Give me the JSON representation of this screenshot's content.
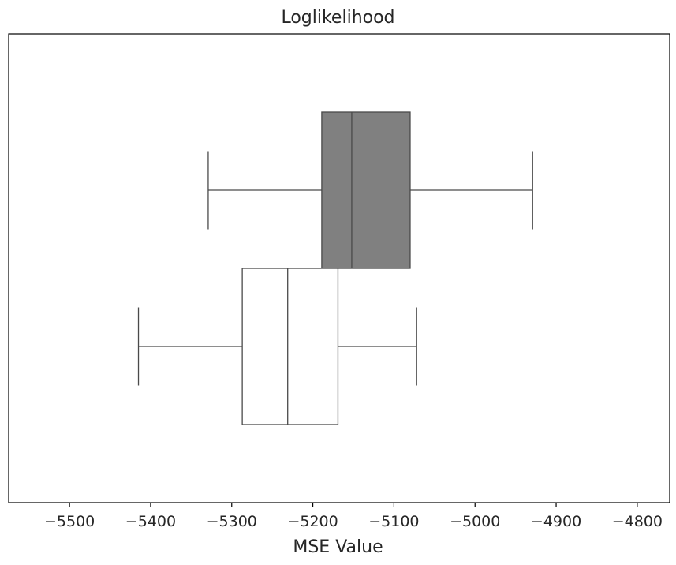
{
  "chart_data": {
    "type": "boxplot",
    "orientation": "horizontal",
    "title": "Loglikelihood",
    "xlabel": "MSE Value",
    "ylabel": "",
    "xlim": [
      -5575,
      -4760
    ],
    "xticks": [
      -5500,
      -5400,
      -5300,
      -5200,
      -5100,
      -5000,
      -4900,
      -4800
    ],
    "xtick_labels": [
      "−5500",
      "−5400",
      "−5300",
      "−5200",
      "−5100",
      "−5000",
      "−4900",
      "−4800"
    ],
    "grid": false,
    "boxes": [
      {
        "whisker_low": -5329,
        "q1": -5189,
        "median": -5152,
        "q3": -5080,
        "whisker_high": -4929,
        "fill": "#808080"
      },
      {
        "whisker_low": -5415,
        "q1": -5287,
        "median": -5231,
        "q3": -5169,
        "whisker_high": -5072,
        "fill": "#ffffff"
      }
    ],
    "colors": {
      "line": "#4a4a4a",
      "axes": "#000000"
    }
  }
}
